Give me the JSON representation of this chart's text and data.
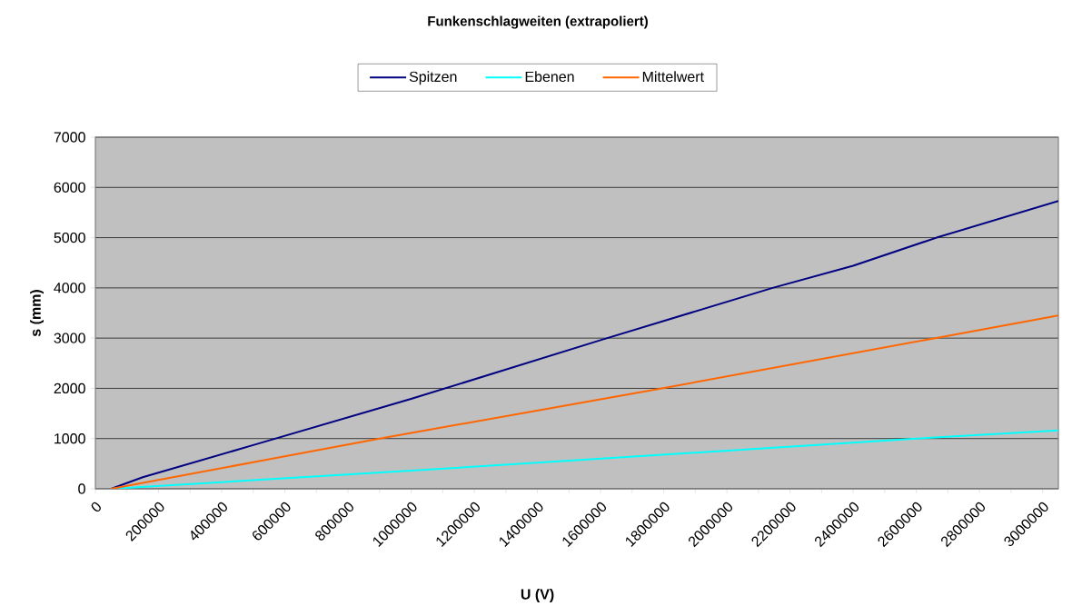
{
  "chart_data": {
    "type": "line",
    "title": "Funkenschlagweiten (extrapoliert)",
    "xlabel": "U (V)",
    "ylabel": "s (mm)",
    "series": [
      {
        "name": "Spitzen",
        "color": "#000080",
        "x": [
          50000,
          150000,
          500000,
          1000000,
          1600000,
          2145000,
          2400000,
          2664000,
          3050000
        ],
        "values": [
          0,
          230,
          870,
          1790,
          2960,
          4000,
          4440,
          5000,
          5730
        ]
      },
      {
        "name": "Ebenen",
        "color": "#00ffff",
        "x": [
          50000,
          1000000,
          2600000,
          3050000
        ],
        "values": [
          0,
          360,
          1000,
          1160
        ]
      },
      {
        "name": "Mittelwert",
        "color": "#ff6600",
        "x": [
          50000,
          900000,
          1794000,
          2660000,
          3050000
        ],
        "values": [
          0,
          1000,
          2000,
          3000,
          3450
        ]
      }
    ],
    "xlim": [
      0,
      3050000
    ],
    "xticks": [
      0,
      {
        "value": 100000,
        "label": null
      },
      200000,
      {
        "value": 300000,
        "label": null
      },
      400000,
      {
        "value": 500000,
        "label": null
      },
      600000,
      {
        "value": 700000,
        "label": null
      },
      800000,
      {
        "value": 900000,
        "label": null
      },
      1000000,
      {
        "value": 1100000,
        "label": null
      },
      1200000,
      {
        "value": 1300000,
        "label": null
      },
      1400000,
      {
        "value": 1500000,
        "label": null
      },
      1600000,
      {
        "value": 1700000,
        "label": null
      },
      1800000,
      {
        "value": 1900000,
        "label": null
      },
      2000000,
      {
        "value": 2100000,
        "label": null
      },
      2200000,
      {
        "value": 2300000,
        "label": null
      },
      2400000,
      {
        "value": 2500000,
        "label": null
      },
      2600000,
      {
        "value": 2700000,
        "label": null
      },
      2800000,
      {
        "value": 2900000,
        "label": null
      },
      3000000
    ],
    "ylim": [
      0,
      7000
    ],
    "yticks": [
      0,
      1000,
      2000,
      3000,
      4000,
      5000,
      6000,
      7000
    ],
    "grid": "y",
    "legend": "top",
    "marker": "none",
    "line_style": "solid"
  }
}
